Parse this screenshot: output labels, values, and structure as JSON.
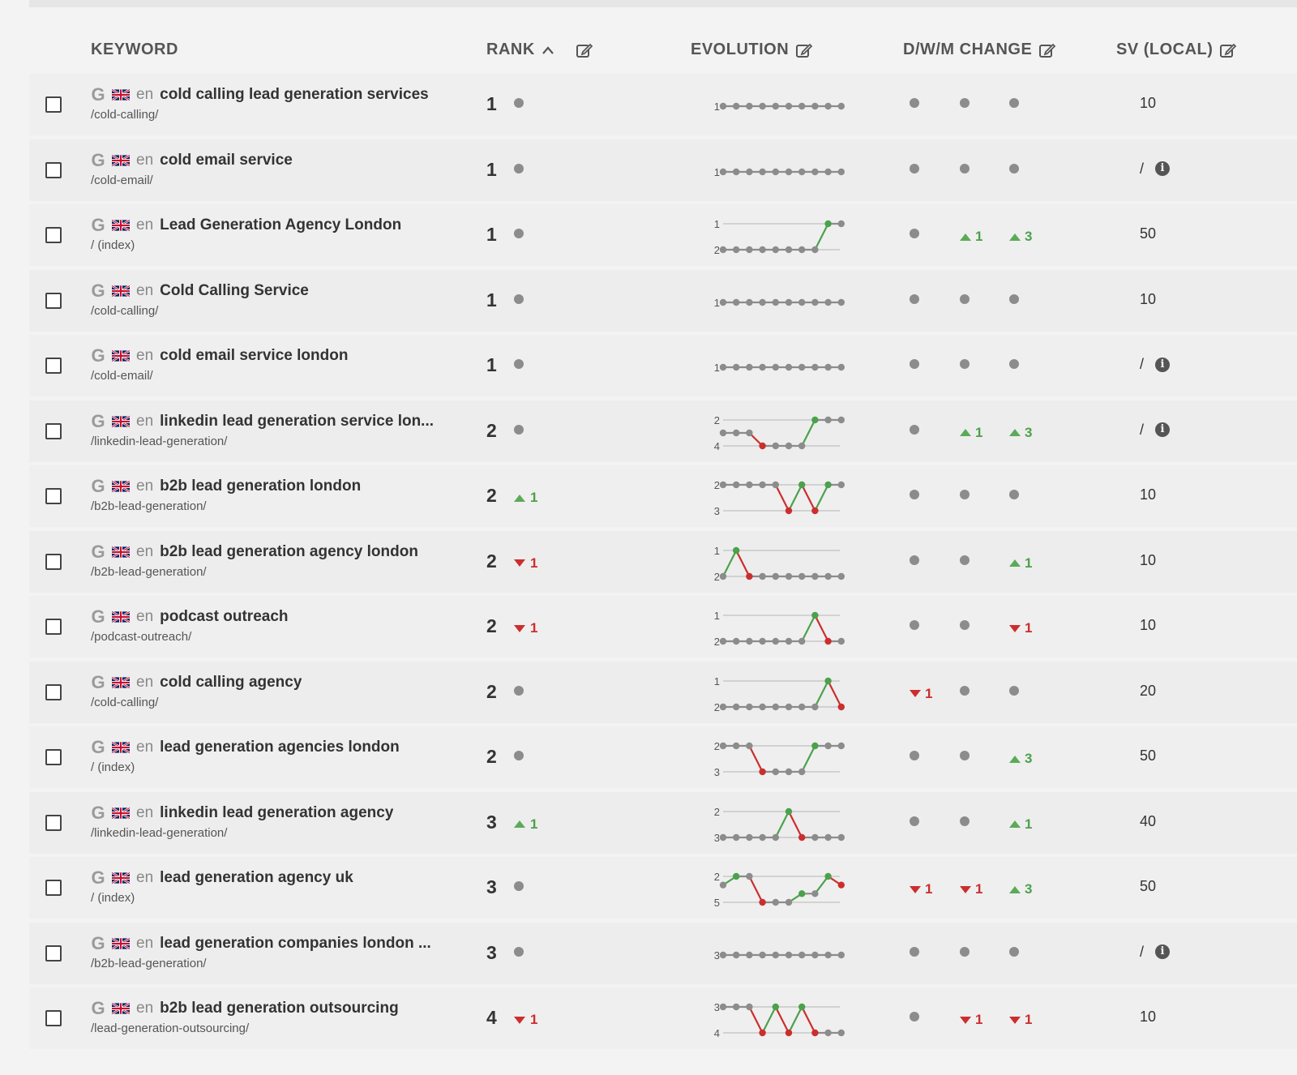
{
  "header": {
    "keyword": "KEYWORD",
    "rank": "RANK",
    "evolution": "EVOLUTION",
    "change": "D/W/M CHANGE",
    "sv": "SV (LOCAL)"
  },
  "icons": {
    "sort": "chevron-up-icon",
    "edit": "edit-icon",
    "engine": "google-icon",
    "flag": "uk-flag-icon",
    "info": "info-icon"
  },
  "colors": {
    "up": "#4ca14c",
    "down": "#cc2e2e",
    "neutral": "#8c8c8c"
  },
  "rows": [
    {
      "engine": "G",
      "lang": "en",
      "keyword": "cold calling lead generation services",
      "url": "/cold-calling/",
      "rank": "1",
      "rank_change": {
        "dir": "none",
        "value": ""
      },
      "evolution": {
        "labels": [
          "1"
        ],
        "ranks": [
          1,
          1,
          1,
          1,
          1,
          1,
          1,
          1,
          1,
          1
        ]
      },
      "changes": [
        {
          "dir": "none",
          "value": ""
        },
        {
          "dir": "none",
          "value": ""
        },
        {
          "dir": "none",
          "value": ""
        }
      ],
      "sv": "10",
      "sv_info": false
    },
    {
      "engine": "G",
      "lang": "en",
      "keyword": "cold email service",
      "url": "/cold-email/",
      "rank": "1",
      "rank_change": {
        "dir": "none",
        "value": ""
      },
      "evolution": {
        "labels": [
          "1"
        ],
        "ranks": [
          1,
          1,
          1,
          1,
          1,
          1,
          1,
          1,
          1,
          1
        ]
      },
      "changes": [
        {
          "dir": "none",
          "value": ""
        },
        {
          "dir": "none",
          "value": ""
        },
        {
          "dir": "none",
          "value": ""
        }
      ],
      "sv": "/",
      "sv_info": true
    },
    {
      "engine": "G",
      "lang": "en",
      "keyword": "Lead Generation Agency London",
      "url": "/ (index)",
      "rank": "1",
      "rank_change": {
        "dir": "none",
        "value": ""
      },
      "evolution": {
        "labels": [
          "1",
          "2"
        ],
        "ranks": [
          2,
          2,
          2,
          2,
          2,
          2,
          2,
          2,
          1,
          1
        ]
      },
      "changes": [
        {
          "dir": "none",
          "value": ""
        },
        {
          "dir": "up",
          "value": "1"
        },
        {
          "dir": "up",
          "value": "3"
        }
      ],
      "sv": "50",
      "sv_info": false
    },
    {
      "engine": "G",
      "lang": "en",
      "keyword": "Cold Calling Service",
      "url": "/cold-calling/",
      "rank": "1",
      "rank_change": {
        "dir": "none",
        "value": ""
      },
      "evolution": {
        "labels": [
          "1"
        ],
        "ranks": [
          1,
          1,
          1,
          1,
          1,
          1,
          1,
          1,
          1,
          1
        ]
      },
      "changes": [
        {
          "dir": "none",
          "value": ""
        },
        {
          "dir": "none",
          "value": ""
        },
        {
          "dir": "none",
          "value": ""
        }
      ],
      "sv": "10",
      "sv_info": false
    },
    {
      "engine": "G",
      "lang": "en",
      "keyword": "cold email service london",
      "url": "/cold-email/",
      "rank": "1",
      "rank_change": {
        "dir": "none",
        "value": ""
      },
      "evolution": {
        "labels": [
          "1"
        ],
        "ranks": [
          1,
          1,
          1,
          1,
          1,
          1,
          1,
          1,
          1,
          1
        ]
      },
      "changes": [
        {
          "dir": "none",
          "value": ""
        },
        {
          "dir": "none",
          "value": ""
        },
        {
          "dir": "none",
          "value": ""
        }
      ],
      "sv": "/",
      "sv_info": true
    },
    {
      "engine": "G",
      "lang": "en",
      "keyword": "linkedin lead generation service lon...",
      "url": "/linkedin-lead-generation/",
      "rank": "2",
      "rank_change": {
        "dir": "none",
        "value": ""
      },
      "evolution": {
        "labels": [
          "2",
          "4"
        ],
        "ranks": [
          3,
          3,
          3,
          4,
          4,
          4,
          4,
          2,
          2,
          2
        ]
      },
      "changes": [
        {
          "dir": "none",
          "value": ""
        },
        {
          "dir": "up",
          "value": "1"
        },
        {
          "dir": "up",
          "value": "3"
        }
      ],
      "sv": "/",
      "sv_info": true
    },
    {
      "engine": "G",
      "lang": "en",
      "keyword": "b2b lead generation london",
      "url": "/b2b-lead-generation/",
      "rank": "2",
      "rank_change": {
        "dir": "up",
        "value": "1"
      },
      "evolution": {
        "labels": [
          "2",
          "3"
        ],
        "ranks": [
          2,
          2,
          2,
          2,
          2,
          3,
          2,
          3,
          2,
          2
        ]
      },
      "changes": [
        {
          "dir": "none",
          "value": ""
        },
        {
          "dir": "none",
          "value": ""
        },
        {
          "dir": "none",
          "value": ""
        }
      ],
      "sv": "10",
      "sv_info": false
    },
    {
      "engine": "G",
      "lang": "en",
      "keyword": "b2b lead generation agency london",
      "url": "/b2b-lead-generation/",
      "rank": "2",
      "rank_change": {
        "dir": "down",
        "value": "1"
      },
      "evolution": {
        "labels": [
          "1",
          "2"
        ],
        "ranks": [
          2,
          1,
          2,
          2,
          2,
          2,
          2,
          2,
          2,
          2
        ]
      },
      "changes": [
        {
          "dir": "none",
          "value": ""
        },
        {
          "dir": "none",
          "value": ""
        },
        {
          "dir": "up",
          "value": "1"
        }
      ],
      "sv": "10",
      "sv_info": false
    },
    {
      "engine": "G",
      "lang": "en",
      "keyword": "podcast outreach",
      "url": "/podcast-outreach/",
      "rank": "2",
      "rank_change": {
        "dir": "down",
        "value": "1"
      },
      "evolution": {
        "labels": [
          "1",
          "2"
        ],
        "ranks": [
          2,
          2,
          2,
          2,
          2,
          2,
          2,
          1,
          2,
          2
        ]
      },
      "changes": [
        {
          "dir": "none",
          "value": ""
        },
        {
          "dir": "none",
          "value": ""
        },
        {
          "dir": "down",
          "value": "1"
        }
      ],
      "sv": "10",
      "sv_info": false
    },
    {
      "engine": "G",
      "lang": "en",
      "keyword": "cold calling agency",
      "url": "/cold-calling/",
      "rank": "2",
      "rank_change": {
        "dir": "none",
        "value": ""
      },
      "evolution": {
        "labels": [
          "1",
          "2"
        ],
        "ranks": [
          2,
          2,
          2,
          2,
          2,
          2,
          2,
          2,
          1,
          2
        ]
      },
      "changes": [
        {
          "dir": "down",
          "value": "1"
        },
        {
          "dir": "none",
          "value": ""
        },
        {
          "dir": "none",
          "value": ""
        }
      ],
      "sv": "20",
      "sv_info": false
    },
    {
      "engine": "G",
      "lang": "en",
      "keyword": "lead generation agencies london",
      "url": "/ (index)",
      "rank": "2",
      "rank_change": {
        "dir": "none",
        "value": ""
      },
      "evolution": {
        "labels": [
          "2",
          "3"
        ],
        "ranks": [
          2,
          2,
          2,
          3,
          3,
          3,
          3,
          2,
          2,
          2
        ]
      },
      "changes": [
        {
          "dir": "none",
          "value": ""
        },
        {
          "dir": "none",
          "value": ""
        },
        {
          "dir": "up",
          "value": "3"
        }
      ],
      "sv": "50",
      "sv_info": false
    },
    {
      "engine": "G",
      "lang": "en",
      "keyword": "linkedin lead generation agency",
      "url": "/linkedin-lead-generation/",
      "rank": "3",
      "rank_change": {
        "dir": "up",
        "value": "1"
      },
      "evolution": {
        "labels": [
          "2",
          "3"
        ],
        "ranks": [
          3,
          3,
          3,
          3,
          3,
          2,
          3,
          3,
          3,
          3
        ]
      },
      "changes": [
        {
          "dir": "none",
          "value": ""
        },
        {
          "dir": "none",
          "value": ""
        },
        {
          "dir": "up",
          "value": "1"
        }
      ],
      "sv": "40",
      "sv_info": false
    },
    {
      "engine": "G",
      "lang": "en",
      "keyword": "lead generation agency uk",
      "url": "/ (index)",
      "rank": "3",
      "rank_change": {
        "dir": "none",
        "value": ""
      },
      "evolution": {
        "labels": [
          "2",
          "5"
        ],
        "ranks": [
          3,
          2,
          2,
          5,
          5,
          5,
          4,
          4,
          2,
          3
        ]
      },
      "changes": [
        {
          "dir": "down",
          "value": "1"
        },
        {
          "dir": "down",
          "value": "1"
        },
        {
          "dir": "up",
          "value": "3"
        }
      ],
      "sv": "50",
      "sv_info": false
    },
    {
      "engine": "G",
      "lang": "en",
      "keyword": "lead generation companies london ...",
      "url": "/b2b-lead-generation/",
      "rank": "3",
      "rank_change": {
        "dir": "none",
        "value": ""
      },
      "evolution": {
        "labels": [
          "3"
        ],
        "ranks": [
          3,
          3,
          3,
          3,
          3,
          3,
          3,
          3,
          3,
          3
        ]
      },
      "changes": [
        {
          "dir": "none",
          "value": ""
        },
        {
          "dir": "none",
          "value": ""
        },
        {
          "dir": "none",
          "value": ""
        }
      ],
      "sv": "/",
      "sv_info": true
    },
    {
      "engine": "G",
      "lang": "en",
      "keyword": "b2b lead generation outsourcing",
      "url": "/lead-generation-outsourcing/",
      "rank": "4",
      "rank_change": {
        "dir": "down",
        "value": "1"
      },
      "evolution": {
        "labels": [
          "3",
          "4"
        ],
        "ranks": [
          3,
          3,
          3,
          4,
          3,
          4,
          3,
          4,
          4,
          4
        ]
      },
      "changes": [
        {
          "dir": "none",
          "value": ""
        },
        {
          "dir": "down",
          "value": "1"
        },
        {
          "dir": "down",
          "value": "1"
        }
      ],
      "sv": "10",
      "sv_info": false
    }
  ]
}
